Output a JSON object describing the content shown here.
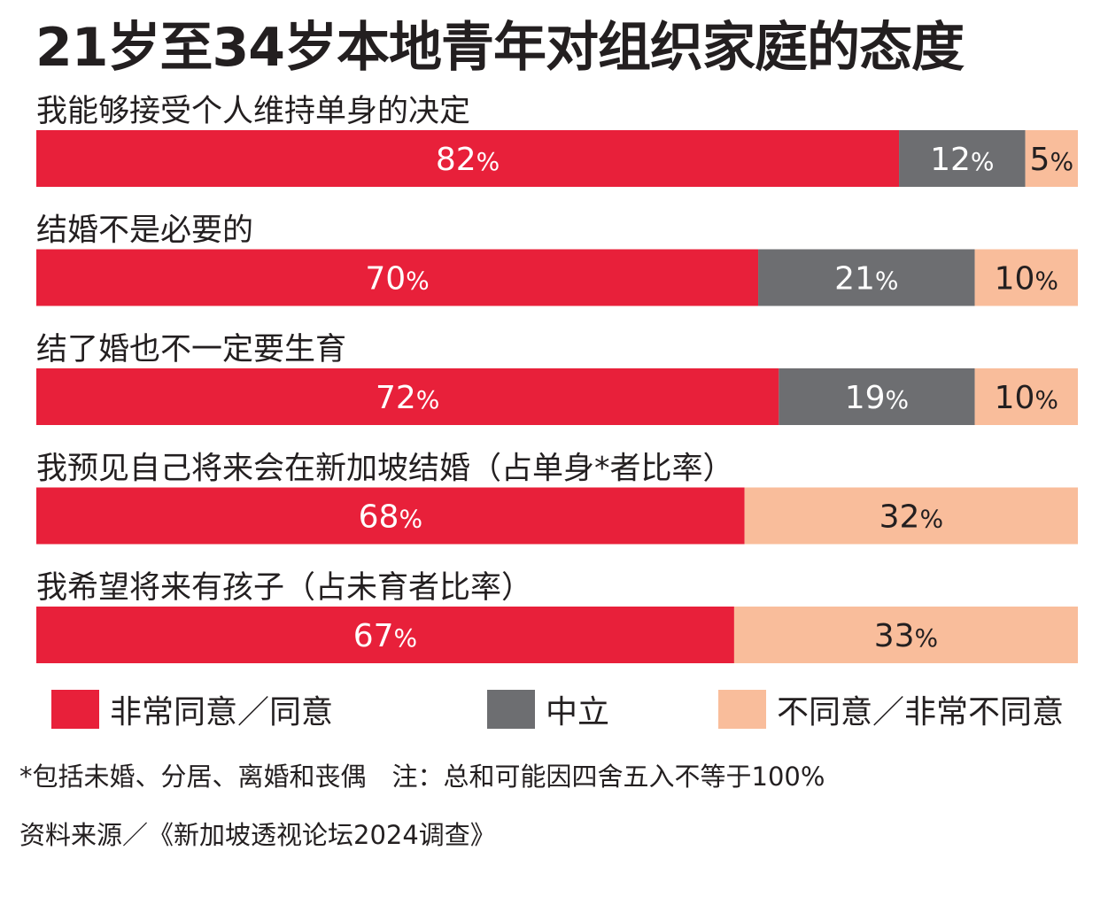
{
  "title": "21岁至34岁本地青年对组织家庭的态度",
  "colors": {
    "agree": "#e8203a",
    "neutral": "#6d6e71",
    "disagree": "#f9bd9b"
  },
  "chart_data": {
    "type": "bar",
    "orientation": "horizontal-stacked-100",
    "categories": [
      "我能够接受个人维持单身的决定",
      "结婚不是必要的",
      "结了婚也不一定要生育",
      "我预见自己将来会在新加坡结婚（占单身*者比率）",
      "我希望将来有孩子（占未育者比率）"
    ],
    "series": [
      {
        "name": "非常同意／同意",
        "values": [
          82,
          70,
          72,
          68,
          67
        ]
      },
      {
        "name": "中立",
        "values": [
          12,
          21,
          19,
          null,
          null
        ]
      },
      {
        "name": "不同意／非常不同意",
        "values": [
          5,
          10,
          10,
          32,
          33
        ]
      }
    ],
    "unit": "%",
    "legend": "bottom"
  },
  "legend": {
    "agree_label": "非常同意／同意",
    "neutral_label": "中立",
    "disagree_label": "不同意／非常不同意"
  },
  "footnote": "*包括未婚、分居、离婚和丧偶　注：总和可能因四舍五入不等于100%",
  "source": "资料来源／《新加坡透视论坛2024调查》"
}
